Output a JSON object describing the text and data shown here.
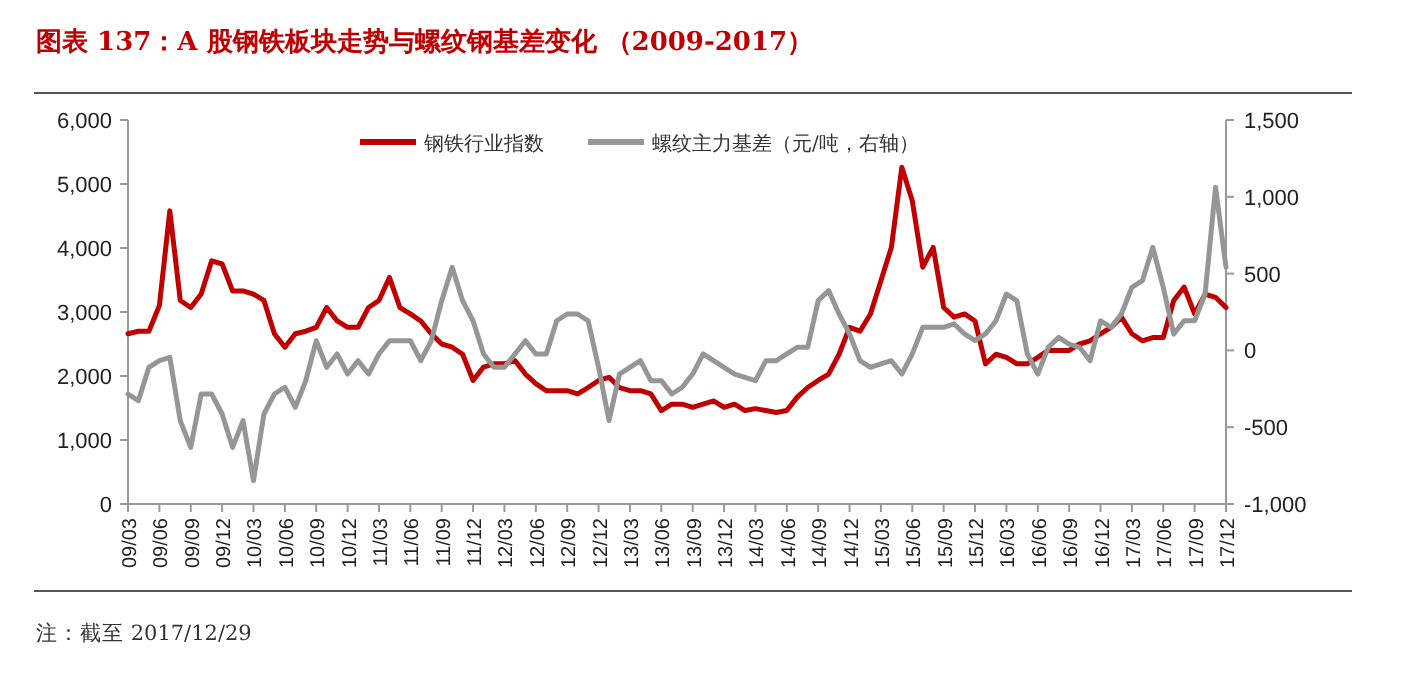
{
  "chart_data": {
    "type": "line",
    "title": "图表 137：A 股钢铁板块走势与螺纹钢基差变化 （2009-2017）",
    "annotations": [
      "注：截至 2017/12/29"
    ],
    "x": [
      "2009-03",
      "2009-04",
      "2009-05",
      "2009-06",
      "2009-07",
      "2009-08",
      "2009-09",
      "2009-10",
      "2009-11",
      "2009-12",
      "2010-01",
      "2010-02",
      "2010-03",
      "2010-04",
      "2010-05",
      "2010-06",
      "2010-07",
      "2010-08",
      "2010-09",
      "2010-10",
      "2010-11",
      "2010-12",
      "2011-01",
      "2011-02",
      "2011-03",
      "2011-04",
      "2011-05",
      "2011-06",
      "2011-07",
      "2011-08",
      "2011-09",
      "2011-10",
      "2011-11",
      "2011-12",
      "2012-01",
      "2012-02",
      "2012-03",
      "2012-04",
      "2012-05",
      "2012-06",
      "2012-07",
      "2012-08",
      "2012-09",
      "2012-10",
      "2012-11",
      "2012-12",
      "2013-01",
      "2013-02",
      "2013-03",
      "2013-04",
      "2013-05",
      "2013-06",
      "2013-07",
      "2013-08",
      "2013-09",
      "2013-10",
      "2013-11",
      "2013-12",
      "2014-01",
      "2014-02",
      "2014-03",
      "2014-04",
      "2014-05",
      "2014-06",
      "2014-07",
      "2014-08",
      "2014-09",
      "2014-10",
      "2014-11",
      "2014-12",
      "2015-01",
      "2015-02",
      "2015-03",
      "2015-04",
      "2015-05",
      "2015-06",
      "2015-07",
      "2015-08",
      "2015-09",
      "2015-10",
      "2015-11",
      "2015-12",
      "2016-01",
      "2016-02",
      "2016-03",
      "2016-04",
      "2016-05",
      "2016-06",
      "2016-07",
      "2016-08",
      "2016-09",
      "2016-10",
      "2016-11",
      "2016-12",
      "2017-01",
      "2017-02",
      "2017-03",
      "2017-04",
      "2017-05",
      "2017-06",
      "2017-07",
      "2017-08",
      "2017-09",
      "2017-10",
      "2017-11",
      "2017-12"
    ],
    "xticks": [
      {
        "value": "2009-03",
        "label": "09/03"
      },
      {
        "value": "2009-06",
        "label": "09/06"
      },
      {
        "value": "2009-09",
        "label": "09/09"
      },
      {
        "value": "2009-12",
        "label": "09/12"
      },
      {
        "value": "2010-03",
        "label": "10/03"
      },
      {
        "value": "2010-06",
        "label": "10/06"
      },
      {
        "value": "2010-09",
        "label": "10/09"
      },
      {
        "value": "2010-12",
        "label": "10/12"
      },
      {
        "value": "2011-03",
        "label": "11/03"
      },
      {
        "value": "2011-06",
        "label": "11/06"
      },
      {
        "value": "2011-09",
        "label": "11/09"
      },
      {
        "value": "2011-12",
        "label": "11/12"
      },
      {
        "value": "2012-03",
        "label": "12/03"
      },
      {
        "value": "2012-06",
        "label": "12/06"
      },
      {
        "value": "2012-09",
        "label": "12/09"
      },
      {
        "value": "2012-12",
        "label": "12/12"
      },
      {
        "value": "2013-03",
        "label": "13/03"
      },
      {
        "value": "2013-06",
        "label": "13/06"
      },
      {
        "value": "2013-09",
        "label": "13/09"
      },
      {
        "value": "2013-12",
        "label": "13/12"
      },
      {
        "value": "2014-03",
        "label": "14/03"
      },
      {
        "value": "2014-06",
        "label": "14/06"
      },
      {
        "value": "2014-09",
        "label": "14/09"
      },
      {
        "value": "2014-12",
        "label": "14/12"
      },
      {
        "value": "2015-03",
        "label": "15/03"
      },
      {
        "value": "2015-06",
        "label": "15/06"
      },
      {
        "value": "2015-09",
        "label": "15/09"
      },
      {
        "value": "2015-12",
        "label": "15/12"
      },
      {
        "value": "2016-03",
        "label": "16/03"
      },
      {
        "value": "2016-06",
        "label": "16/06"
      },
      {
        "value": "2016-09",
        "label": "16/09"
      },
      {
        "value": "2016-12",
        "label": "16/12"
      },
      {
        "value": "2017-03",
        "label": "17/03"
      },
      {
        "value": "2017-06",
        "label": "17/06"
      },
      {
        "value": "2017-09",
        "label": "17/09"
      },
      {
        "value": "2017-12",
        "label": "17/12"
      }
    ],
    "xlim": [
      "2009-03",
      "2017-12"
    ],
    "ylim": [
      0,
      6000
    ],
    "yticks": [
      0,
      {
        "value": 1000,
        "label": "1,000"
      },
      {
        "value": 2000,
        "label": "2,000"
      },
      {
        "value": 3000,
        "label": "3,000"
      },
      {
        "value": 4000,
        "label": "4,000"
      },
      {
        "value": 5000,
        "label": "5,000"
      },
      {
        "value": 6000,
        "label": "6,000"
      }
    ],
    "y2lim": [
      -1000,
      1500
    ],
    "y2ticks": [
      {
        "value": -1000,
        "label": "-1,000"
      },
      -500,
      0,
      500,
      {
        "value": 1000,
        "label": "1,000"
      },
      {
        "value": 1500,
        "label": "1,500"
      }
    ],
    "legend": "top",
    "grid": false,
    "series": [
      {
        "name": "钢铁行业指数",
        "color": "#c00000",
        "values": [
          2660,
          2700,
          2700,
          3100,
          4580,
          3180,
          3070,
          3280,
          3800,
          3750,
          3330,
          3330,
          3280,
          3180,
          2660,
          2450,
          2660,
          2700,
          2760,
          3070,
          2860,
          2760,
          2760,
          3070,
          3180,
          3540,
          3070,
          2970,
          2860,
          2660,
          2500,
          2450,
          2340,
          1930,
          2140,
          2190,
          2190,
          2240,
          2030,
          1880,
          1770,
          1770,
          1770,
          1720,
          1820,
          1930,
          1980,
          1820,
          1770,
          1770,
          1720,
          1460,
          1560,
          1560,
          1510,
          1560,
          1610,
          1510,
          1560,
          1460,
          1490,
          1460,
          1430,
          1460,
          1670,
          1820,
          1930,
          2030,
          2340,
          2760,
          2700,
          2970,
          3490,
          4010,
          5260,
          4740,
          3700,
          4010,
          3070,
          2920,
          2970,
          2860,
          2190,
          2340,
          2290,
          2190,
          2190,
          2290,
          2400,
          2400,
          2400,
          2500,
          2550,
          2660,
          2760,
          2920,
          2660,
          2550,
          2600,
          2600,
          3180,
          3390,
          2970,
          3280,
          3230,
          3070
        ]
      },
      {
        "name": "螺纹主力基差（元/吨，右轴）",
        "color": "#969696",
        "axis": "y2",
        "values": [
          -284,
          -327,
          -110,
          -67,
          -45,
          -457,
          -631,
          -284,
          -284,
          -414,
          -631,
          -457,
          -848,
          -414,
          -284,
          -240,
          -371,
          -197,
          63,
          -110,
          -23,
          -154,
          -67,
          -154,
          -23,
          63,
          63,
          63,
          -67,
          63,
          324,
          541,
          324,
          193,
          -23,
          -110,
          -110,
          -23,
          63,
          -23,
          -23,
          193,
          237,
          237,
          193,
          -110,
          -457,
          -154,
          -110,
          -67,
          -197,
          -197,
          -284,
          -240,
          -154,
          -23,
          -67,
          -110,
          -154,
          -175,
          -197,
          -67,
          -67,
          -23,
          20,
          20,
          324,
          389,
          237,
          107,
          -67,
          -110,
          -88,
          -67,
          -154,
          -23,
          150,
          150,
          150,
          172,
          107,
          63,
          107,
          193,
          367,
          324,
          -23,
          -154,
          20,
          85,
          41,
          20,
          -67,
          193,
          150,
          237,
          411,
          454,
          671,
          411,
          107,
          193,
          193,
          367,
          1062,
          541
        ]
      }
    ]
  }
}
